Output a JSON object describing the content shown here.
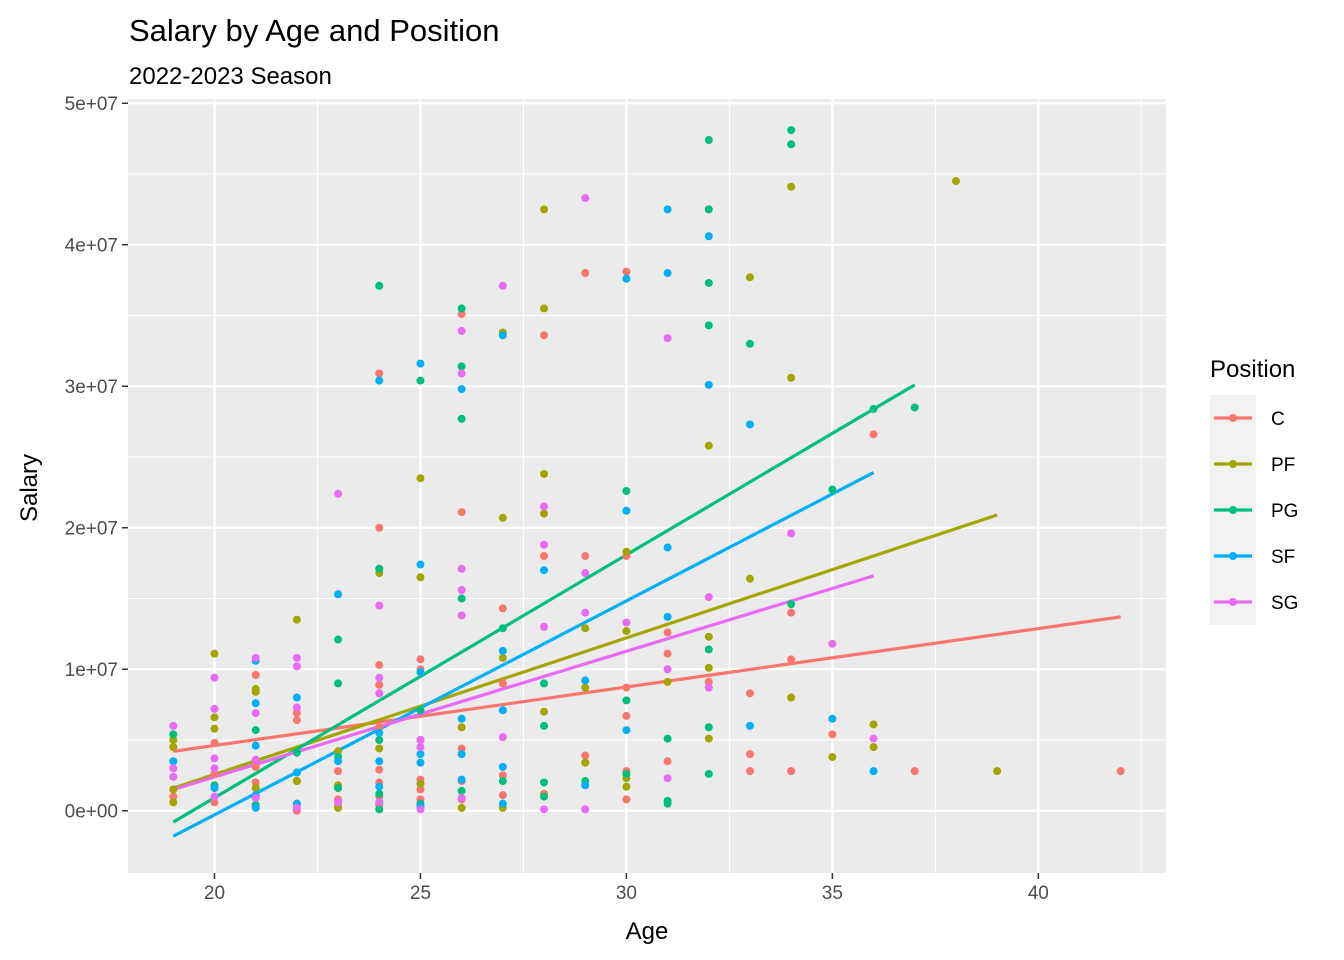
{
  "chart_data": {
    "type": "scatter",
    "title": "Salary by Age and Position",
    "subtitle": "2022-2023 Season",
    "xlabel": "Age",
    "ylabel": "Salary",
    "xlim": [
      17.9,
      43.1
    ],
    "ylim": [
      -4400000,
      50300000
    ],
    "x_ticks": [
      20,
      25,
      30,
      35,
      40
    ],
    "x_tick_labels": [
      "20",
      "25",
      "30",
      "35",
      "40"
    ],
    "x_minor_ticks": [
      22.5,
      27.5,
      32.5,
      37.5,
      42.5
    ],
    "y_ticks": [
      0,
      10000000,
      20000000,
      30000000,
      40000000,
      50000000
    ],
    "y_tick_labels": [
      "0e+00",
      "1e+07",
      "2e+07",
      "3e+07",
      "4e+07",
      "5e+07"
    ],
    "y_minor_ticks": [
      5000000,
      15000000,
      25000000,
      35000000,
      45000000
    ],
    "grid": true,
    "legend": {
      "title": "Position",
      "placement": "right"
    },
    "series": [
      {
        "name": "C",
        "color": "#F8766D",
        "trend": [
          [
            19,
            4200000
          ],
          [
            42,
            13700000
          ]
        ],
        "points": [
          [
            19,
            1000000
          ],
          [
            20,
            4800000
          ],
          [
            20,
            2600000
          ],
          [
            20,
            600000
          ],
          [
            21,
            9600000
          ],
          [
            21,
            3100000
          ],
          [
            21,
            2000000
          ],
          [
            22,
            6900000
          ],
          [
            22,
            6400000
          ],
          [
            22,
            2100000
          ],
          [
            22,
            500000
          ],
          [
            22,
            0
          ],
          [
            23,
            2800000
          ],
          [
            23,
            1600000
          ],
          [
            23,
            800000
          ],
          [
            23,
            300000
          ],
          [
            24,
            30900000
          ],
          [
            24,
            20000000
          ],
          [
            24,
            17100000
          ],
          [
            24,
            10300000
          ],
          [
            24,
            8900000
          ],
          [
            24,
            5900000
          ],
          [
            24,
            2900000
          ],
          [
            24,
            2000000
          ],
          [
            24,
            1000000
          ],
          [
            24,
            400000
          ],
          [
            25,
            10700000
          ],
          [
            25,
            10000000
          ],
          [
            25,
            5000000
          ],
          [
            25,
            2200000
          ],
          [
            25,
            1500000
          ],
          [
            25,
            800000
          ],
          [
            26,
            35100000
          ],
          [
            26,
            21100000
          ],
          [
            26,
            4400000
          ],
          [
            26,
            2100000
          ],
          [
            26,
            800000
          ],
          [
            27,
            14300000
          ],
          [
            27,
            9000000
          ],
          [
            27,
            2500000
          ],
          [
            27,
            1100000
          ],
          [
            28,
            33600000
          ],
          [
            28,
            18000000
          ],
          [
            28,
            1200000
          ],
          [
            29,
            38000000
          ],
          [
            29,
            18000000
          ],
          [
            29,
            3900000
          ],
          [
            29,
            3400000
          ],
          [
            30,
            38100000
          ],
          [
            30,
            18000000
          ],
          [
            30,
            8700000
          ],
          [
            30,
            6700000
          ],
          [
            30,
            2800000
          ],
          [
            30,
            800000
          ],
          [
            31,
            11100000
          ],
          [
            31,
            12600000
          ],
          [
            31,
            3500000
          ],
          [
            32,
            9100000
          ],
          [
            33,
            8300000
          ],
          [
            33,
            4000000
          ],
          [
            33,
            2800000
          ],
          [
            34,
            14000000
          ],
          [
            34,
            10700000
          ],
          [
            34,
            2800000
          ],
          [
            35,
            5400000
          ],
          [
            36,
            26600000
          ],
          [
            37,
            2800000
          ],
          [
            42,
            2800000
          ]
        ]
      },
      {
        "name": "PF",
        "color": "#A3A500",
        "trend": [
          [
            19,
            1600000
          ],
          [
            39,
            20900000
          ]
        ],
        "points": [
          [
            19,
            5000000
          ],
          [
            19,
            4500000
          ],
          [
            19,
            1500000
          ],
          [
            19,
            600000
          ],
          [
            20,
            11100000
          ],
          [
            20,
            6600000
          ],
          [
            20,
            5800000
          ],
          [
            21,
            8600000
          ],
          [
            21,
            8400000
          ],
          [
            21,
            1600000
          ],
          [
            22,
            13500000
          ],
          [
            22,
            2100000
          ],
          [
            23,
            4200000
          ],
          [
            23,
            1800000
          ],
          [
            23,
            200000
          ],
          [
            24,
            16800000
          ],
          [
            24,
            4400000
          ],
          [
            24,
            500000
          ],
          [
            25,
            23500000
          ],
          [
            25,
            16500000
          ],
          [
            25,
            1900000
          ],
          [
            26,
            5900000
          ],
          [
            26,
            200000
          ],
          [
            27,
            33800000
          ],
          [
            27,
            20700000
          ],
          [
            27,
            10800000
          ],
          [
            27,
            200000
          ],
          [
            28,
            42500000
          ],
          [
            28,
            35500000
          ],
          [
            28,
            23800000
          ],
          [
            28,
            21000000
          ],
          [
            28,
            7000000
          ],
          [
            29,
            12900000
          ],
          [
            29,
            8700000
          ],
          [
            29,
            3400000
          ],
          [
            30,
            18300000
          ],
          [
            30,
            12700000
          ],
          [
            30,
            2300000
          ],
          [
            30,
            1700000
          ],
          [
            31,
            9100000
          ],
          [
            32,
            25800000
          ],
          [
            32,
            12300000
          ],
          [
            32,
            10100000
          ],
          [
            32,
            5100000
          ],
          [
            33,
            37700000
          ],
          [
            33,
            16400000
          ],
          [
            34,
            44100000
          ],
          [
            34,
            30600000
          ],
          [
            34,
            8000000
          ],
          [
            35,
            3800000
          ],
          [
            36,
            6100000
          ],
          [
            36,
            4500000
          ],
          [
            38,
            44500000
          ],
          [
            39,
            2800000
          ]
        ]
      },
      {
        "name": "PG",
        "color": "#00BF7D",
        "trend": [
          [
            19,
            -800000
          ],
          [
            37,
            30100000
          ]
        ],
        "points": [
          [
            19,
            5400000
          ],
          [
            20,
            1800000
          ],
          [
            21,
            5700000
          ],
          [
            21,
            400000
          ],
          [
            22,
            4100000
          ],
          [
            23,
            12100000
          ],
          [
            23,
            9000000
          ],
          [
            23,
            3800000
          ],
          [
            23,
            1600000
          ],
          [
            24,
            37100000
          ],
          [
            24,
            17100000
          ],
          [
            24,
            5000000
          ],
          [
            24,
            1200000
          ],
          [
            24,
            100000
          ],
          [
            25,
            30400000
          ],
          [
            25,
            7100000
          ],
          [
            25,
            500000
          ],
          [
            26,
            35500000
          ],
          [
            26,
            31400000
          ],
          [
            26,
            27700000
          ],
          [
            26,
            15000000
          ],
          [
            26,
            1400000
          ],
          [
            27,
            12900000
          ],
          [
            27,
            2100000
          ],
          [
            28,
            9000000
          ],
          [
            28,
            6000000
          ],
          [
            28,
            2000000
          ],
          [
            28,
            1000000
          ],
          [
            29,
            2100000
          ],
          [
            30,
            22600000
          ],
          [
            30,
            7800000
          ],
          [
            30,
            2600000
          ],
          [
            31,
            5100000
          ],
          [
            31,
            700000
          ],
          [
            31,
            500000
          ],
          [
            32,
            47400000
          ],
          [
            32,
            42500000
          ],
          [
            32,
            37300000
          ],
          [
            32,
            34300000
          ],
          [
            32,
            11400000
          ],
          [
            32,
            5900000
          ],
          [
            32,
            2600000
          ],
          [
            33,
            33000000
          ],
          [
            34,
            48100000
          ],
          [
            34,
            47100000
          ],
          [
            34,
            14600000
          ],
          [
            35,
            22700000
          ],
          [
            36,
            28400000
          ],
          [
            37,
            28500000
          ]
        ]
      },
      {
        "name": "SF",
        "color": "#00B0F6",
        "trend": [
          [
            19,
            -1800000
          ],
          [
            36,
            23900000
          ]
        ],
        "points": [
          [
            19,
            3500000
          ],
          [
            20,
            1600000
          ],
          [
            21,
            10600000
          ],
          [
            21,
            7600000
          ],
          [
            21,
            4600000
          ],
          [
            21,
            1100000
          ],
          [
            21,
            200000
          ],
          [
            22,
            8000000
          ],
          [
            22,
            2700000
          ],
          [
            22,
            500000
          ],
          [
            23,
            15300000
          ],
          [
            23,
            3500000
          ],
          [
            24,
            30400000
          ],
          [
            24,
            5500000
          ],
          [
            24,
            3500000
          ],
          [
            24,
            1700000
          ],
          [
            25,
            31600000
          ],
          [
            25,
            17400000
          ],
          [
            25,
            9800000
          ],
          [
            25,
            4000000
          ],
          [
            25,
            3400000
          ],
          [
            25,
            300000
          ],
          [
            26,
            29800000
          ],
          [
            26,
            6500000
          ],
          [
            26,
            4000000
          ],
          [
            26,
            2200000
          ],
          [
            27,
            33600000
          ],
          [
            27,
            11300000
          ],
          [
            27,
            7100000
          ],
          [
            27,
            3100000
          ],
          [
            27,
            500000
          ],
          [
            28,
            17000000
          ],
          [
            29,
            9200000
          ],
          [
            29,
            1800000
          ],
          [
            30,
            37600000
          ],
          [
            30,
            21200000
          ],
          [
            30,
            5700000
          ],
          [
            31,
            42500000
          ],
          [
            31,
            38000000
          ],
          [
            31,
            18600000
          ],
          [
            31,
            13700000
          ],
          [
            32,
            40600000
          ],
          [
            32,
            30100000
          ],
          [
            33,
            27300000
          ],
          [
            33,
            6000000
          ],
          [
            35,
            6500000
          ],
          [
            36,
            2800000
          ]
        ]
      },
      {
        "name": "SG",
        "color": "#E76BF3",
        "trend": [
          [
            19,
            1500000
          ],
          [
            36,
            16600000
          ]
        ],
        "points": [
          [
            19,
            6000000
          ],
          [
            19,
            3000000
          ],
          [
            19,
            2400000
          ],
          [
            20,
            9400000
          ],
          [
            20,
            7200000
          ],
          [
            20,
            3700000
          ],
          [
            20,
            3000000
          ],
          [
            20,
            1000000
          ],
          [
            21,
            10800000
          ],
          [
            21,
            6900000
          ],
          [
            21,
            3600000
          ],
          [
            21,
            900000
          ],
          [
            22,
            10800000
          ],
          [
            22,
            10200000
          ],
          [
            22,
            7300000
          ],
          [
            22,
            200000
          ],
          [
            23,
            22400000
          ],
          [
            23,
            600000
          ],
          [
            24,
            14500000
          ],
          [
            24,
            9400000
          ],
          [
            24,
            8300000
          ],
          [
            24,
            600000
          ],
          [
            25,
            5000000
          ],
          [
            25,
            4500000
          ],
          [
            25,
            100000
          ],
          [
            26,
            33900000
          ],
          [
            26,
            30900000
          ],
          [
            26,
            17100000
          ],
          [
            26,
            15600000
          ],
          [
            26,
            13800000
          ],
          [
            26,
            900000
          ],
          [
            27,
            37100000
          ],
          [
            27,
            5200000
          ],
          [
            28,
            21500000
          ],
          [
            28,
            18800000
          ],
          [
            28,
            13000000
          ],
          [
            28,
            100000
          ],
          [
            29,
            43300000
          ],
          [
            29,
            16800000
          ],
          [
            29,
            14000000
          ],
          [
            29,
            100000
          ],
          [
            30,
            13300000
          ],
          [
            31,
            33400000
          ],
          [
            31,
            10000000
          ],
          [
            31,
            2300000
          ],
          [
            32,
            15100000
          ],
          [
            32,
            8700000
          ],
          [
            34,
            19600000
          ],
          [
            35,
            11800000
          ],
          [
            36,
            5100000
          ]
        ]
      }
    ]
  }
}
